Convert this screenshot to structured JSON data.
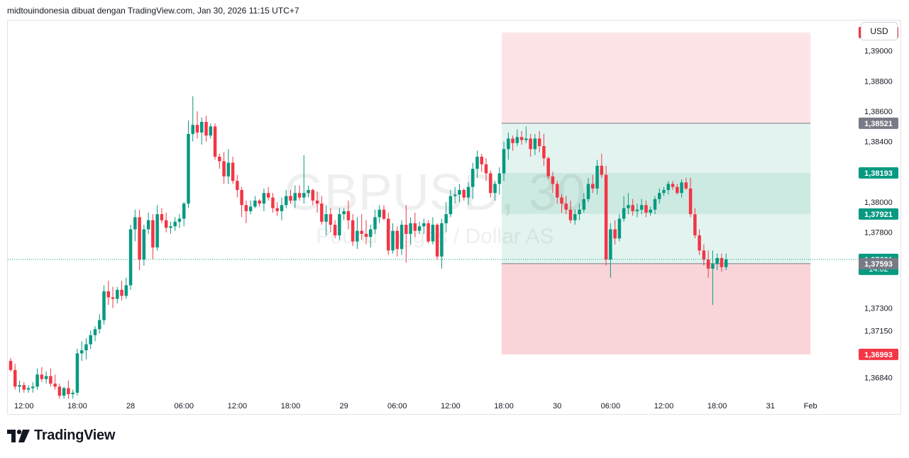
{
  "caption": "midtouindonesia dibuat dengan TradingView.com, Jan 30, 2026 11:15 UTC+7",
  "currency_button": "USD",
  "logo_text": "TradingView",
  "watermark": {
    "symbol": "GBPUSD, 30",
    "description": "Pound Inggris / Dollar AS"
  },
  "colors": {
    "up": "#089981",
    "down": "#f23645",
    "stop_zone": "#fde5e7",
    "stop_zone_lower": "#f9d5d9",
    "target_zone": "#e3f4f0",
    "target_band": "#cdeae2",
    "gray_label": "#787b86",
    "green_label": "#089981",
    "red_label": "#f23645"
  },
  "chart_data": {
    "type": "candlestick",
    "title": "GBPUSD, 30",
    "ylim": [
      1.3673,
      1.392
    ],
    "price_axis_ticks": [
      "1,39000",
      "1,38800",
      "1,38600",
      "1,38400",
      "1,38000",
      "1,37800",
      "1,37300",
      "1,37150",
      "1,36840"
    ],
    "tick_values": [
      1.39,
      1.388,
      1.386,
      1.384,
      1.38,
      1.378,
      1.373,
      1.3715,
      1.3684
    ],
    "time_axis_labels": [
      {
        "label": "12:00",
        "bar": 3
      },
      {
        "label": "18:00",
        "bar": 15
      },
      {
        "label": "28",
        "bar": 27
      },
      {
        "label": "06:00",
        "bar": 39
      },
      {
        "label": "12:00",
        "bar": 51
      },
      {
        "label": "18:00",
        "bar": 63
      },
      {
        "label": "29",
        "bar": 75
      },
      {
        "label": "06:00",
        "bar": 87
      },
      {
        "label": "12:00",
        "bar": 99
      },
      {
        "label": "18:00",
        "bar": 111
      },
      {
        "label": "30",
        "bar": 123
      },
      {
        "label": "06:00",
        "bar": 135
      },
      {
        "label": "12:00",
        "bar": 147
      },
      {
        "label": "18:00",
        "bar": 159
      },
      {
        "label": "31",
        "bar": 171
      },
      {
        "label": "Feb",
        "bar": 180
      }
    ],
    "price_labels": [
      {
        "text": "1,39121",
        "value": 1.39121,
        "style": "red"
      },
      {
        "text": "1,38521",
        "value": 1.38521,
        "style": "gray"
      },
      {
        "text": "1,38193",
        "value": 1.38193,
        "style": "green"
      },
      {
        "text": "1,37921",
        "value": 1.37921,
        "style": "green"
      },
      {
        "text": "1,37621",
        "sub": "14:02",
        "value": 1.37621,
        "style": "green"
      },
      {
        "text": "1,37593",
        "value": 1.37593,
        "style": "gray"
      },
      {
        "text": "1,36993",
        "value": 1.36993,
        "style": "red"
      }
    ],
    "last_price": 1.37621,
    "position_tool": {
      "start_bar": 111,
      "end_bar": 180,
      "stop": 1.39121,
      "entry_upper": 1.38521,
      "band_top": 1.38193,
      "band_bottom": 1.37921,
      "entry": 1.37593,
      "target": 1.36993
    },
    "candles": [
      [
        1.3695,
        1.3697,
        1.3688,
        1.3689
      ],
      [
        1.3689,
        1.3693,
        1.3676,
        1.3678
      ],
      [
        1.3678,
        1.3682,
        1.3674,
        1.3679
      ],
      [
        1.3679,
        1.3681,
        1.3674,
        1.3676
      ],
      [
        1.3676,
        1.3679,
        1.3674,
        1.3677
      ],
      [
        1.3677,
        1.3681,
        1.3674,
        1.3678
      ],
      [
        1.3678,
        1.369,
        1.3676,
        1.3686
      ],
      [
        1.3686,
        1.3691,
        1.3681,
        1.3683
      ],
      [
        1.3683,
        1.3688,
        1.368,
        1.3685
      ],
      [
        1.3685,
        1.369,
        1.3678,
        1.368
      ],
      [
        1.368,
        1.3686,
        1.3676,
        1.3678
      ],
      [
        1.3678,
        1.368,
        1.367,
        1.3672
      ],
      [
        1.3672,
        1.3678,
        1.367,
        1.3677
      ],
      [
        1.3677,
        1.3682,
        1.367,
        1.3673
      ],
      [
        1.3673,
        1.3676,
        1.367,
        1.3674
      ],
      [
        1.3674,
        1.3703,
        1.3672,
        1.37
      ],
      [
        1.37,
        1.3708,
        1.3695,
        1.3702
      ],
      [
        1.3702,
        1.371,
        1.3696,
        1.3706
      ],
      [
        1.3706,
        1.3715,
        1.3703,
        1.3712
      ],
      [
        1.3712,
        1.3718,
        1.3708,
        1.3716
      ],
      [
        1.3716,
        1.3726,
        1.3713,
        1.3722
      ],
      [
        1.3722,
        1.3745,
        1.3719,
        1.3741
      ],
      [
        1.3741,
        1.3748,
        1.3732,
        1.3737
      ],
      [
        1.3737,
        1.3744,
        1.373,
        1.3736
      ],
      [
        1.3736,
        1.3744,
        1.3733,
        1.3742
      ],
      [
        1.3742,
        1.3748,
        1.3735,
        1.3738
      ],
      [
        1.3738,
        1.375,
        1.3736,
        1.3745
      ],
      [
        1.3745,
        1.3785,
        1.3742,
        1.3782
      ],
      [
        1.3782,
        1.3795,
        1.3774,
        1.379
      ],
      [
        1.379,
        1.3795,
        1.3755,
        1.3762
      ],
      [
        1.3762,
        1.3785,
        1.3758,
        1.3782
      ],
      [
        1.3782,
        1.3793,
        1.3779,
        1.3788
      ],
      [
        1.3788,
        1.3792,
        1.3762,
        1.377
      ],
      [
        1.377,
        1.3798,
        1.3768,
        1.3792
      ],
      [
        1.3792,
        1.3796,
        1.3786,
        1.3788
      ],
      [
        1.3788,
        1.3793,
        1.378,
        1.3783
      ],
      [
        1.3783,
        1.3787,
        1.3779,
        1.3784
      ],
      [
        1.3784,
        1.379,
        1.3781,
        1.3787
      ],
      [
        1.3787,
        1.3792,
        1.3783,
        1.3789
      ],
      [
        1.3789,
        1.38,
        1.3784,
        1.3799
      ],
      [
        1.3799,
        1.3854,
        1.3796,
        1.3845
      ],
      [
        1.3845,
        1.387,
        1.384,
        1.3851
      ],
      [
        1.3851,
        1.386,
        1.3842,
        1.3846
      ],
      [
        1.3846,
        1.3856,
        1.3838,
        1.3853
      ],
      [
        1.3853,
        1.3857,
        1.384,
        1.3844
      ],
      [
        1.3844,
        1.3852,
        1.3842,
        1.385
      ],
      [
        1.385,
        1.3852,
        1.3828,
        1.383
      ],
      [
        1.383,
        1.3832,
        1.3822,
        1.3827
      ],
      [
        1.3827,
        1.3833,
        1.3812,
        1.3817
      ],
      [
        1.3817,
        1.3835,
        1.3812,
        1.3826
      ],
      [
        1.3826,
        1.383,
        1.3812,
        1.3814
      ],
      [
        1.3814,
        1.3818,
        1.3803,
        1.3808
      ],
      [
        1.3808,
        1.381,
        1.379,
        1.3798
      ],
      [
        1.3798,
        1.3801,
        1.3786,
        1.3794
      ],
      [
        1.3794,
        1.3801,
        1.3792,
        1.3797
      ],
      [
        1.3797,
        1.3804,
        1.3796,
        1.3801
      ],
      [
        1.3801,
        1.3802,
        1.3797,
        1.3799
      ],
      [
        1.3799,
        1.3809,
        1.3794,
        1.3806
      ],
      [
        1.3806,
        1.381,
        1.3801,
        1.3803
      ],
      [
        1.3803,
        1.3806,
        1.3793,
        1.3796
      ],
      [
        1.3796,
        1.38,
        1.3791,
        1.3794
      ],
      [
        1.3794,
        1.3803,
        1.3788,
        1.3798
      ],
      [
        1.3798,
        1.3808,
        1.3796,
        1.3804
      ],
      [
        1.3804,
        1.3808,
        1.3799,
        1.3801
      ],
      [
        1.3801,
        1.3811,
        1.3796,
        1.3806
      ],
      [
        1.3806,
        1.3811,
        1.3801,
        1.3803
      ],
      [
        1.3803,
        1.3831,
        1.3799,
        1.3806
      ],
      [
        1.3806,
        1.3811,
        1.3803,
        1.3808
      ],
      [
        1.3808,
        1.3809,
        1.3798,
        1.3801
      ],
      [
        1.3801,
        1.3807,
        1.3793,
        1.3799
      ],
      [
        1.3799,
        1.3804,
        1.3785,
        1.3787
      ],
      [
        1.3787,
        1.3798,
        1.3778,
        1.3792
      ],
      [
        1.3792,
        1.3796,
        1.378,
        1.3785
      ],
      [
        1.3785,
        1.3788,
        1.3776,
        1.3778
      ],
      [
        1.3778,
        1.3796,
        1.3775,
        1.3792
      ],
      [
        1.3792,
        1.3796,
        1.3788,
        1.3794
      ],
      [
        1.3794,
        1.3801,
        1.3782,
        1.3788
      ],
      [
        1.3788,
        1.3792,
        1.3771,
        1.3774
      ],
      [
        1.3774,
        1.379,
        1.3769,
        1.3781
      ],
      [
        1.3781,
        1.3792,
        1.3775,
        1.3779
      ],
      [
        1.3779,
        1.3788,
        1.3772,
        1.3777
      ],
      [
        1.3777,
        1.3785,
        1.377,
        1.3782
      ],
      [
        1.3782,
        1.3795,
        1.3779,
        1.379
      ],
      [
        1.379,
        1.3798,
        1.3786,
        1.3795
      ],
      [
        1.3795,
        1.3798,
        1.3788,
        1.3789
      ],
      [
        1.3789,
        1.3793,
        1.3765,
        1.3768
      ],
      [
        1.3768,
        1.3786,
        1.3766,
        1.3781
      ],
      [
        1.3781,
        1.3784,
        1.3764,
        1.3769
      ],
      [
        1.3769,
        1.3788,
        1.3765,
        1.3785
      ],
      [
        1.3785,
        1.3798,
        1.376,
        1.3779
      ],
      [
        1.3779,
        1.379,
        1.3772,
        1.3786
      ],
      [
        1.3786,
        1.3793,
        1.3777,
        1.3781
      ],
      [
        1.3781,
        1.3787,
        1.3779,
        1.3784
      ],
      [
        1.3784,
        1.3789,
        1.3779,
        1.3786
      ],
      [
        1.3786,
        1.3788,
        1.3773,
        1.3774
      ],
      [
        1.3774,
        1.379,
        1.3772,
        1.3785
      ],
      [
        1.3785,
        1.3786,
        1.3762,
        1.3764
      ],
      [
        1.3764,
        1.3789,
        1.3756,
        1.3786
      ],
      [
        1.3786,
        1.38,
        1.378,
        1.3792
      ],
      [
        1.3792,
        1.3808,
        1.379,
        1.3804
      ],
      [
        1.3804,
        1.381,
        1.3799,
        1.3805
      ],
      [
        1.3805,
        1.3812,
        1.38,
        1.3808
      ],
      [
        1.3808,
        1.3809,
        1.3801,
        1.3803
      ],
      [
        1.3803,
        1.3813,
        1.3798,
        1.381
      ],
      [
        1.381,
        1.3826,
        1.3802,
        1.3822
      ],
      [
        1.3822,
        1.3834,
        1.3816,
        1.383
      ],
      [
        1.383,
        1.3832,
        1.382,
        1.3825
      ],
      [
        1.3825,
        1.3829,
        1.3814,
        1.3819
      ],
      [
        1.3819,
        1.3821,
        1.3803,
        1.3806
      ],
      [
        1.3806,
        1.3814,
        1.3801,
        1.3812
      ],
      [
        1.3812,
        1.3823,
        1.3805,
        1.3819
      ],
      [
        1.3819,
        1.384,
        1.3814,
        1.3835
      ],
      [
        1.3835,
        1.3846,
        1.3828,
        1.3842
      ],
      [
        1.3842,
        1.3844,
        1.3834,
        1.3839
      ],
      [
        1.3839,
        1.3848,
        1.3837,
        1.3843
      ],
      [
        1.3843,
        1.3847,
        1.3838,
        1.3841
      ],
      [
        1.3841,
        1.385,
        1.3839,
        1.3842
      ],
      [
        1.3842,
        1.3845,
        1.383,
        1.3835
      ],
      [
        1.3835,
        1.3845,
        1.3831,
        1.3842
      ],
      [
        1.3842,
        1.3847,
        1.3833,
        1.3837
      ],
      [
        1.3837,
        1.3845,
        1.3824,
        1.3829
      ],
      [
        1.3829,
        1.383,
        1.3815,
        1.3817
      ],
      [
        1.3817,
        1.382,
        1.3806,
        1.3812
      ],
      [
        1.3812,
        1.3814,
        1.3799,
        1.3803
      ],
      [
        1.3803,
        1.3805,
        1.3793,
        1.3799
      ],
      [
        1.3799,
        1.3804,
        1.3792,
        1.3795
      ],
      [
        1.3795,
        1.3801,
        1.3786,
        1.3788
      ],
      [
        1.3788,
        1.3795,
        1.3785,
        1.3792
      ],
      [
        1.3792,
        1.3799,
        1.3788,
        1.3795
      ],
      [
        1.3795,
        1.3806,
        1.3793,
        1.3802
      ],
      [
        1.3802,
        1.3816,
        1.38,
        1.3812
      ],
      [
        1.3812,
        1.3818,
        1.3806,
        1.3809
      ],
      [
        1.3809,
        1.3828,
        1.3805,
        1.3824
      ],
      [
        1.3824,
        1.3832,
        1.3816,
        1.3818
      ],
      [
        1.3818,
        1.3824,
        1.3758,
        1.3762
      ],
      [
        1.3762,
        1.3786,
        1.375,
        1.3782
      ],
      [
        1.3782,
        1.3788,
        1.3772,
        1.3776
      ],
      [
        1.3776,
        1.3792,
        1.3774,
        1.3789
      ],
      [
        1.3789,
        1.3804,
        1.3787,
        1.3796
      ],
      [
        1.3796,
        1.3806,
        1.3792,
        1.3798
      ],
      [
        1.3798,
        1.3802,
        1.3791,
        1.3794
      ],
      [
        1.3794,
        1.3799,
        1.379,
        1.3795
      ],
      [
        1.3795,
        1.3802,
        1.3792,
        1.3798
      ],
      [
        1.3798,
        1.3801,
        1.379,
        1.3793
      ],
      [
        1.3793,
        1.3797,
        1.3791,
        1.3795
      ],
      [
        1.3795,
        1.3804,
        1.3792,
        1.3802
      ],
      [
        1.3802,
        1.3809,
        1.3799,
        1.3806
      ],
      [
        1.3806,
        1.381,
        1.3804,
        1.3808
      ],
      [
        1.3808,
        1.3814,
        1.3805,
        1.3812
      ],
      [
        1.3812,
        1.3814,
        1.3808,
        1.381
      ],
      [
        1.381,
        1.3812,
        1.3805,
        1.3806
      ],
      [
        1.3806,
        1.3815,
        1.3803,
        1.3813
      ],
      [
        1.3813,
        1.3816,
        1.3808,
        1.3809
      ],
      [
        1.3809,
        1.3816,
        1.379,
        1.3792
      ],
      [
        1.3792,
        1.3796,
        1.3776,
        1.3778
      ],
      [
        1.3778,
        1.3782,
        1.3765,
        1.3768
      ],
      [
        1.3768,
        1.3772,
        1.3758,
        1.3762
      ],
      [
        1.3762,
        1.3768,
        1.375,
        1.3756
      ],
      [
        1.3756,
        1.3768,
        1.3732,
        1.3759
      ],
      [
        1.3759,
        1.3766,
        1.3755,
        1.3763
      ],
      [
        1.3763,
        1.3766,
        1.3754,
        1.3757
      ],
      [
        1.3757,
        1.3766,
        1.3755,
        1.37621
      ]
    ]
  }
}
